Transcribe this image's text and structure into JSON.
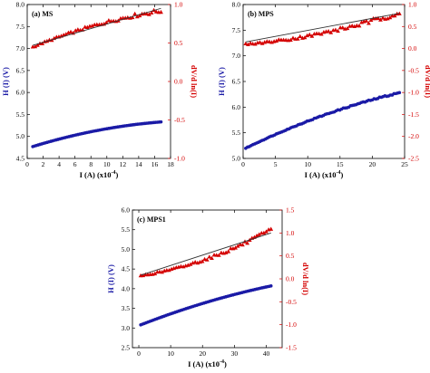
{
  "chart_data": [
    {
      "type": "scatter",
      "panel_label": "(a) MS",
      "xlabel": "I (A) (x10",
      "xlabel_exp": "-4",
      "xlabel_close": ")",
      "ylabel_left": "H (I) (V)",
      "ylabel_right": "dV/d ln(I)",
      "xlim": [
        0,
        18
      ],
      "xticks": [
        0,
        2,
        4,
        6,
        8,
        10,
        12,
        14,
        16,
        18
      ],
      "ylim_left": [
        4.5,
        8.0
      ],
      "yticks_left": [
        "4.5",
        "5.0",
        "5.5",
        "6.0",
        "6.5",
        "7.0",
        "7.5",
        "8.0"
      ],
      "ylim_right": [
        -1.0,
        1.0
      ],
      "yticks_right": [
        "-1.0",
        "-0.5",
        "0.0",
        "0.5",
        "1.0"
      ],
      "colors": {
        "left_series": "#1a1aa6",
        "right_series": "#d40000",
        "fit": "#333333"
      },
      "series": [
        {
          "axis": "left",
          "marker": "circle",
          "x_range": [
            0.7,
            16.8
          ],
          "y_start": 4.77,
          "y_end": 5.33,
          "curvature": 0.6
        },
        {
          "axis": "right",
          "marker": "triangle",
          "x_range": [
            0.7,
            16.8
          ],
          "y_start": 0.45,
          "y_end": 0.92,
          "curvature": 0.45,
          "noise": 0.02
        },
        {
          "axis": "right",
          "marker": "line",
          "x_range": [
            0.7,
            16.8
          ],
          "y_start": 0.47,
          "y_end": 0.95
        }
      ]
    },
    {
      "type": "scatter",
      "panel_label": "(b) MPS",
      "xlabel": "I (A) (x10",
      "xlabel_exp": "-4",
      "xlabel_close": ")",
      "ylabel_left": "H (I) (V)",
      "ylabel_right": "dV/d ln(I)",
      "xlim": [
        0,
        25
      ],
      "xticks": [
        0,
        5,
        10,
        15,
        20,
        25
      ],
      "ylim_left": [
        5.0,
        8.0
      ],
      "yticks_left": [
        "5.0",
        "5.5",
        "6.0",
        "6.5",
        "7.0",
        "7.5",
        "8.0"
      ],
      "ylim_right": [
        -2.5,
        1.0
      ],
      "yticks_right": [
        "-2.5",
        "-2.0",
        "-1.5",
        "-1.0",
        "-0.5",
        "0.0",
        "0.5",
        "1.0"
      ],
      "colors": {
        "left_series": "#1a1aa6",
        "right_series": "#d40000",
        "fit": "#333333"
      },
      "series": [
        {
          "axis": "left",
          "marker": "circle",
          "x_range": [
            0.4,
            24.2
          ],
          "y_start": 5.2,
          "y_end": 6.28,
          "curvature": 0.35,
          "noise": 0.01
        },
        {
          "axis": "right",
          "marker": "triangle",
          "x_range": [
            0.4,
            24.2
          ],
          "y_start": 0.1,
          "y_end": 0.82,
          "curvature": -0.6,
          "noise": 0.04
        },
        {
          "axis": "right",
          "marker": "line",
          "x_range": [
            0.4,
            24.2
          ],
          "y_start": 0.15,
          "y_end": 0.8
        }
      ]
    },
    {
      "type": "scatter",
      "panel_label": "(c) MPS1",
      "xlabel": "I (A) (x10",
      "xlabel_exp": "-4",
      "xlabel_close": ")",
      "ylabel_left": "H (I) (V)",
      "ylabel_right": "dV/d ln(I)",
      "xlim": [
        -2,
        45
      ],
      "xticks": [
        0,
        10,
        20,
        30,
        40
      ],
      "ylim_left": [
        2.5,
        6.0
      ],
      "yticks_left": [
        "2.5",
        "3.0",
        "3.5",
        "4.0",
        "4.5",
        "5.0",
        "5.5",
        "6.0"
      ],
      "ylim_right": [
        -1.5,
        1.5
      ],
      "yticks_right": [
        "-1.5",
        "-1.0",
        "-0.5",
        "0.0",
        "0.5",
        "1.0",
        "1.5"
      ],
      "colors": {
        "left_series": "#1a1aa6",
        "right_series": "#d40000",
        "fit": "#333333"
      },
      "series": [
        {
          "axis": "left",
          "marker": "circle",
          "x_range": [
            0.6,
            41.5
          ],
          "y_start": 3.08,
          "y_end": 4.07,
          "curvature": 0.3
        },
        {
          "axis": "right",
          "marker": "triangle",
          "x_range": [
            0.6,
            41.5
          ],
          "y_start": 0.07,
          "y_end": 1.07,
          "curvature": -0.55,
          "noise": 0.03
        },
        {
          "axis": "right",
          "marker": "line",
          "x_range": [
            0.6,
            41.5
          ],
          "y_start": 0.08,
          "y_end": 1.0
        }
      ]
    }
  ]
}
